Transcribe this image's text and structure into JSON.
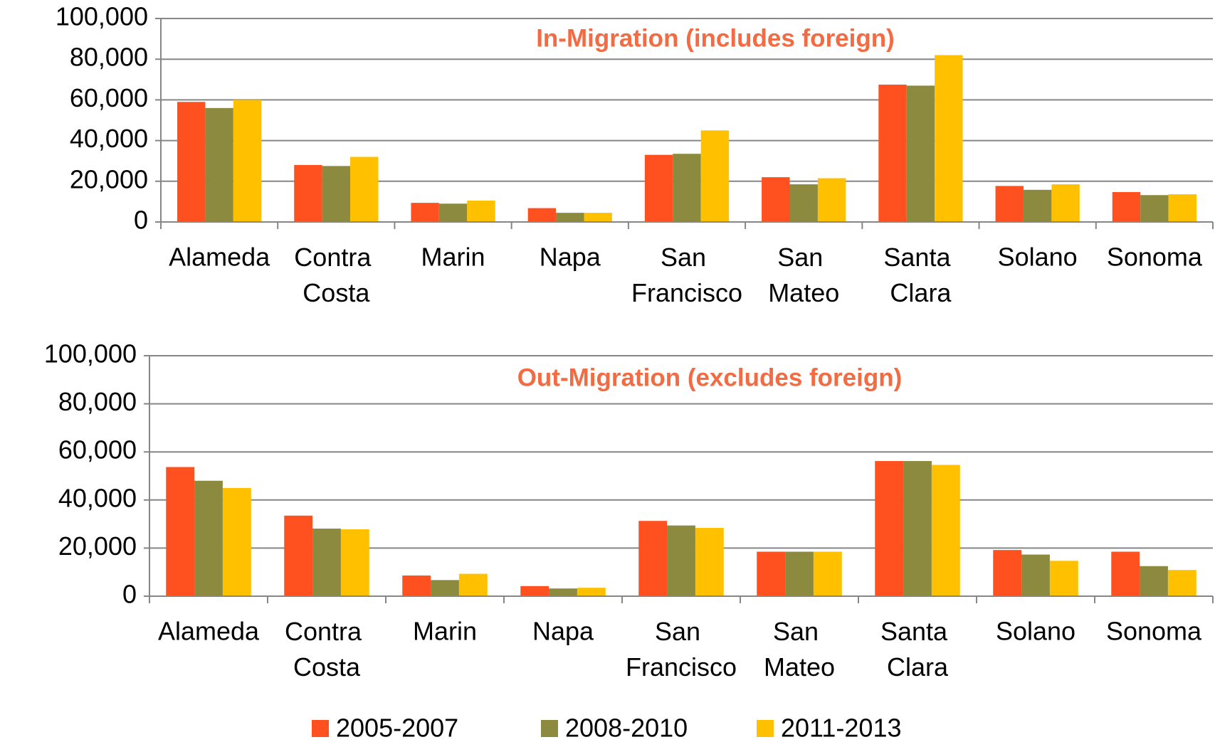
{
  "chart_data": [
    {
      "type": "bar",
      "title": "In-Migration (includes foreign)",
      "categories": [
        "Alameda",
        "Contra Costa",
        "Marin",
        "Napa",
        "San Francisco",
        "San Mateo",
        "Santa Clara",
        "Solano",
        "Sonoma"
      ],
      "series": [
        {
          "name": "2005-2007",
          "color": "#ff5020",
          "values": [
            59000,
            28000,
            9400,
            6800,
            33000,
            22000,
            67500,
            17700,
            14700
          ]
        },
        {
          "name": "2008-2010",
          "color": "#8b8a3e",
          "values": [
            56000,
            27500,
            9000,
            4500,
            33500,
            18500,
            67000,
            15800,
            13200
          ]
        },
        {
          "name": "2011-2013",
          "color": "#ffc000",
          "values": [
            60000,
            32000,
            10500,
            4500,
            45000,
            21500,
            82000,
            18500,
            13600
          ]
        }
      ],
      "ylim": [
        0,
        100000
      ],
      "yticks": [
        0,
        {
          "value": 20000,
          "label": "20,000"
        },
        {
          "value": 40000,
          "label": "40,000"
        },
        {
          "value": 60000,
          "label": "60,000"
        },
        {
          "value": 80000,
          "label": "80,000"
        },
        {
          "value": 100000,
          "label": "100,000"
        }
      ],
      "grid": true
    },
    {
      "type": "bar",
      "title": "Out-Migration (excludes foreign)",
      "categories": [
        "Alameda",
        "Contra Costa",
        "Marin",
        "Napa",
        "San Francisco",
        "San Mateo",
        "Santa Clara",
        "Solano",
        "Sonoma"
      ],
      "series": [
        {
          "name": "2005-2007",
          "color": "#ff5020",
          "values": [
            53700,
            33500,
            8600,
            4200,
            31300,
            18500,
            56200,
            19200,
            18500
          ]
        },
        {
          "name": "2008-2010",
          "color": "#8b8a3e",
          "values": [
            48000,
            28100,
            6700,
            3200,
            29400,
            18500,
            56200,
            17300,
            12500
          ]
        },
        {
          "name": "2011-2013",
          "color": "#ffc000",
          "values": [
            45000,
            27800,
            9300,
            3500,
            28400,
            18500,
            54600,
            14700,
            10900
          ]
        }
      ],
      "ylim": [
        0,
        100000
      ],
      "yticks": [
        0,
        {
          "value": 20000,
          "label": "20,000"
        },
        {
          "value": 40000,
          "label": "40,000"
        },
        {
          "value": 60000,
          "label": "60,000"
        },
        {
          "value": 80000,
          "label": "80,000"
        },
        {
          "value": 100000,
          "label": "100,000"
        }
      ],
      "grid": true,
      "legend": "bottom"
    }
  ]
}
